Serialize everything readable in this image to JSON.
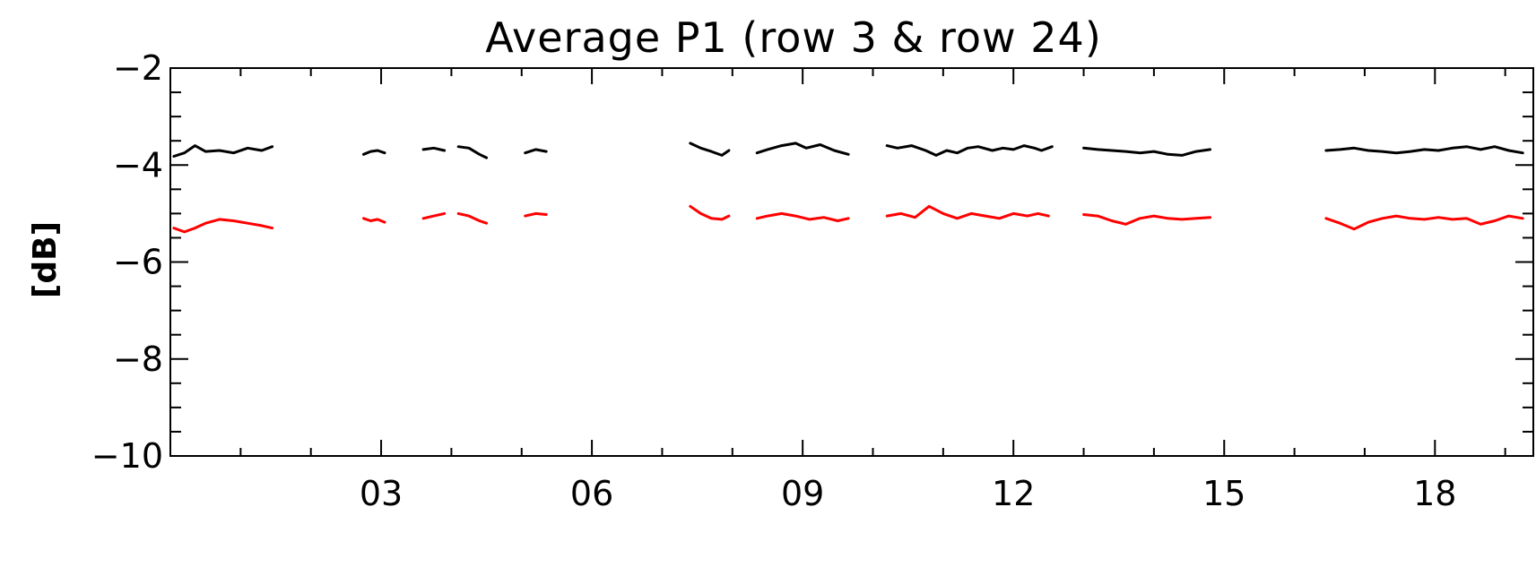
{
  "chart_data": {
    "type": "line",
    "title": "Average P1 (row 3 & row 24)",
    "xlabel": "",
    "ylabel": "[dB]",
    "xlim": [
      0,
      19.4
    ],
    "ylim": [
      -10,
      -2
    ],
    "x_ticks": [
      {
        "value": 3,
        "label": "03"
      },
      {
        "value": 6,
        "label": "06"
      },
      {
        "value": 9,
        "label": "09"
      },
      {
        "value": 12,
        "label": "12"
      },
      {
        "value": 15,
        "label": "15"
      },
      {
        "value": 18,
        "label": "18"
      }
    ],
    "y_ticks": [
      {
        "value": -2,
        "label": "−2"
      },
      {
        "value": -4,
        "label": "−4"
      },
      {
        "value": -6,
        "label": "−6"
      },
      {
        "value": -8,
        "label": "−8"
      },
      {
        "value": -10,
        "label": "−10"
      }
    ],
    "grid": false,
    "series": [
      {
        "color": "#000000",
        "segments": [
          [
            [
              0.05,
              -3.82
            ],
            [
              0.2,
              -3.75
            ],
            [
              0.35,
              -3.6
            ],
            [
              0.5,
              -3.72
            ],
            [
              0.7,
              -3.7
            ],
            [
              0.9,
              -3.75
            ],
            [
              1.1,
              -3.65
            ],
            [
              1.3,
              -3.7
            ],
            [
              1.45,
              -3.62
            ]
          ],
          [
            [
              2.75,
              -3.78
            ],
            [
              2.85,
              -3.72
            ],
            [
              2.95,
              -3.7
            ],
            [
              3.05,
              -3.75
            ]
          ],
          [
            [
              3.6,
              -3.68
            ],
            [
              3.75,
              -3.65
            ],
            [
              3.9,
              -3.7
            ]
          ],
          [
            [
              4.1,
              -3.62
            ],
            [
              4.25,
              -3.65
            ],
            [
              4.4,
              -3.78
            ],
            [
              4.5,
              -3.85
            ]
          ],
          [
            [
              5.05,
              -3.75
            ],
            [
              5.2,
              -3.68
            ],
            [
              5.35,
              -3.72
            ]
          ],
          [
            [
              7.4,
              -3.55
            ],
            [
              7.55,
              -3.65
            ],
            [
              7.7,
              -3.72
            ],
            [
              7.85,
              -3.8
            ],
            [
              7.95,
              -3.7
            ]
          ],
          [
            [
              8.35,
              -3.75
            ],
            [
              8.5,
              -3.68
            ],
            [
              8.7,
              -3.6
            ],
            [
              8.9,
              -3.55
            ],
            [
              9.05,
              -3.65
            ],
            [
              9.25,
              -3.58
            ],
            [
              9.45,
              -3.7
            ],
            [
              9.65,
              -3.78
            ]
          ],
          [
            [
              10.2,
              -3.6
            ],
            [
              10.35,
              -3.65
            ],
            [
              10.55,
              -3.6
            ],
            [
              10.75,
              -3.7
            ],
            [
              10.9,
              -3.8
            ],
            [
              11.05,
              -3.7
            ],
            [
              11.2,
              -3.75
            ],
            [
              11.35,
              -3.65
            ],
            [
              11.5,
              -3.62
            ],
            [
              11.7,
              -3.7
            ],
            [
              11.85,
              -3.65
            ],
            [
              12.0,
              -3.68
            ],
            [
              12.15,
              -3.6
            ],
            [
              12.3,
              -3.65
            ],
            [
              12.4,
              -3.7
            ],
            [
              12.55,
              -3.62
            ]
          ],
          [
            [
              13.0,
              -3.65
            ],
            [
              13.2,
              -3.68
            ],
            [
              13.4,
              -3.7
            ],
            [
              13.6,
              -3.72
            ],
            [
              13.8,
              -3.75
            ],
            [
              14.0,
              -3.72
            ],
            [
              14.2,
              -3.78
            ],
            [
              14.4,
              -3.8
            ],
            [
              14.6,
              -3.72
            ],
            [
              14.8,
              -3.68
            ]
          ],
          [
            [
              16.45,
              -3.7
            ],
            [
              16.65,
              -3.68
            ],
            [
              16.85,
              -3.65
            ],
            [
              17.05,
              -3.7
            ],
            [
              17.25,
              -3.72
            ],
            [
              17.45,
              -3.75
            ],
            [
              17.65,
              -3.72
            ],
            [
              17.85,
              -3.68
            ],
            [
              18.05,
              -3.7
            ],
            [
              18.25,
              -3.65
            ],
            [
              18.45,
              -3.62
            ],
            [
              18.65,
              -3.68
            ],
            [
              18.85,
              -3.62
            ],
            [
              19.05,
              -3.7
            ],
            [
              19.25,
              -3.75
            ]
          ]
        ]
      },
      {
        "color": "#ff0000",
        "segments": [
          [
            [
              0.05,
              -5.3
            ],
            [
              0.2,
              -5.38
            ],
            [
              0.35,
              -5.3
            ],
            [
              0.5,
              -5.2
            ],
            [
              0.7,
              -5.12
            ],
            [
              0.9,
              -5.15
            ],
            [
              1.1,
              -5.2
            ],
            [
              1.3,
              -5.25
            ],
            [
              1.45,
              -5.3
            ]
          ],
          [
            [
              2.75,
              -5.1
            ],
            [
              2.85,
              -5.15
            ],
            [
              2.95,
              -5.12
            ],
            [
              3.05,
              -5.18
            ]
          ],
          [
            [
              3.6,
              -5.1
            ],
            [
              3.75,
              -5.05
            ],
            [
              3.9,
              -5.0
            ]
          ],
          [
            [
              4.1,
              -5.0
            ],
            [
              4.25,
              -5.05
            ],
            [
              4.4,
              -5.15
            ],
            [
              4.5,
              -5.2
            ]
          ],
          [
            [
              5.05,
              -5.05
            ],
            [
              5.2,
              -5.0
            ],
            [
              5.35,
              -5.02
            ]
          ],
          [
            [
              7.4,
              -4.85
            ],
            [
              7.55,
              -5.0
            ],
            [
              7.7,
              -5.1
            ],
            [
              7.85,
              -5.12
            ],
            [
              7.95,
              -5.05
            ]
          ],
          [
            [
              8.35,
              -5.1
            ],
            [
              8.5,
              -5.05
            ],
            [
              8.7,
              -5.0
            ],
            [
              8.9,
              -5.05
            ],
            [
              9.1,
              -5.12
            ],
            [
              9.3,
              -5.08
            ],
            [
              9.5,
              -5.15
            ],
            [
              9.65,
              -5.1
            ]
          ],
          [
            [
              10.2,
              -5.05
            ],
            [
              10.4,
              -5.0
            ],
            [
              10.6,
              -5.08
            ],
            [
              10.8,
              -4.85
            ],
            [
              11.0,
              -5.0
            ],
            [
              11.2,
              -5.1
            ],
            [
              11.4,
              -5.0
            ],
            [
              11.6,
              -5.05
            ],
            [
              11.8,
              -5.1
            ],
            [
              12.0,
              -5.0
            ],
            [
              12.2,
              -5.05
            ],
            [
              12.35,
              -5.0
            ],
            [
              12.5,
              -5.05
            ]
          ],
          [
            [
              13.0,
              -5.02
            ],
            [
              13.2,
              -5.05
            ],
            [
              13.4,
              -5.15
            ],
            [
              13.6,
              -5.22
            ],
            [
              13.8,
              -5.1
            ],
            [
              14.0,
              -5.05
            ],
            [
              14.2,
              -5.1
            ],
            [
              14.4,
              -5.12
            ],
            [
              14.6,
              -5.1
            ],
            [
              14.8,
              -5.08
            ]
          ],
          [
            [
              16.45,
              -5.1
            ],
            [
              16.65,
              -5.2
            ],
            [
              16.85,
              -5.32
            ],
            [
              17.05,
              -5.18
            ],
            [
              17.25,
              -5.1
            ],
            [
              17.45,
              -5.05
            ],
            [
              17.65,
              -5.1
            ],
            [
              17.85,
              -5.12
            ],
            [
              18.05,
              -5.08
            ],
            [
              18.25,
              -5.12
            ],
            [
              18.45,
              -5.1
            ],
            [
              18.65,
              -5.22
            ],
            [
              18.85,
              -5.15
            ],
            [
              19.05,
              -5.05
            ],
            [
              19.25,
              -5.1
            ]
          ]
        ]
      }
    ]
  }
}
